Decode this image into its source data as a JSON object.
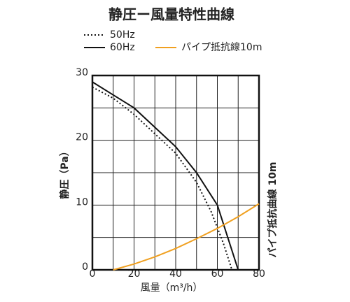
{
  "chart_data": {
    "type": "line",
    "title": "静圧ー風量特性曲線",
    "x_label": "風量（m³/h）",
    "y_label": "静圧（Pa）",
    "annotation": "パイプ抵抗曲線 10m",
    "xlim": [
      0,
      80
    ],
    "ylim": [
      0,
      30
    ],
    "xticks": [
      0,
      20,
      40,
      60,
      80
    ],
    "yticks": [
      0,
      10,
      20,
      30
    ],
    "minor_xticks": [
      10,
      30,
      50,
      70
    ],
    "minor_yticks": [
      5,
      15,
      25
    ],
    "grid": true,
    "series": [
      {
        "name": "50Hz",
        "color": "#111111",
        "style": "dotted",
        "x": [
          0,
          10,
          20,
          30,
          40,
          50,
          57,
          63,
          67
        ],
        "values": [
          28.2,
          26.5,
          24,
          21,
          18,
          13.5,
          9,
          4,
          0
        ]
      },
      {
        "name": "60Hz",
        "color": "#111111",
        "style": "solid",
        "x": [
          0,
          10,
          20,
          30,
          40,
          50,
          60,
          65,
          70
        ],
        "values": [
          29,
          27,
          25,
          22,
          19,
          15,
          10,
          5,
          0
        ]
      },
      {
        "name": "パイプ抵抗線10m",
        "color": "#f0a020",
        "style": "solid",
        "x": [
          10,
          20,
          30,
          40,
          50,
          60,
          70,
          80
        ],
        "values": [
          0,
          0.9,
          2,
          3.3,
          4.8,
          6.4,
          8.2,
          10.2
        ]
      }
    ]
  }
}
